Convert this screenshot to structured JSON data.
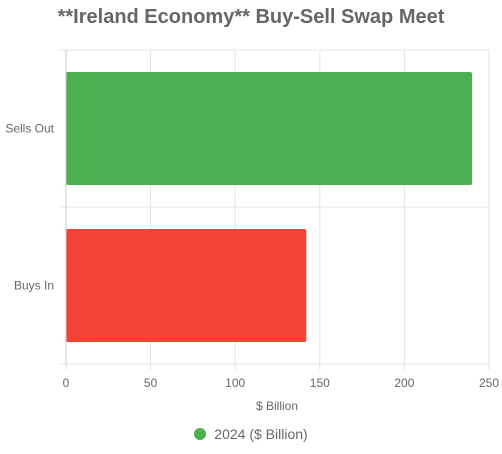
{
  "chart_data": {
    "type": "bar",
    "orientation": "horizontal",
    "title": "**Ireland Economy** Buy-Sell Swap Meet",
    "categories": [
      "Sells Out",
      "Buys In"
    ],
    "values": [
      240,
      142
    ],
    "bar_colors": [
      "#4caf50",
      "#f44336"
    ],
    "xlabel": "$ Billion",
    "ylabel": "",
    "xlim": [
      0,
      250
    ],
    "xticks": [
      "0",
      "50",
      "100",
      "150",
      "200",
      "250"
    ],
    "grid": true,
    "legend": {
      "position": "bottom",
      "entries": [
        {
          "label": "2024 ($ Billion)",
          "color": "#4caf50"
        }
      ]
    }
  }
}
